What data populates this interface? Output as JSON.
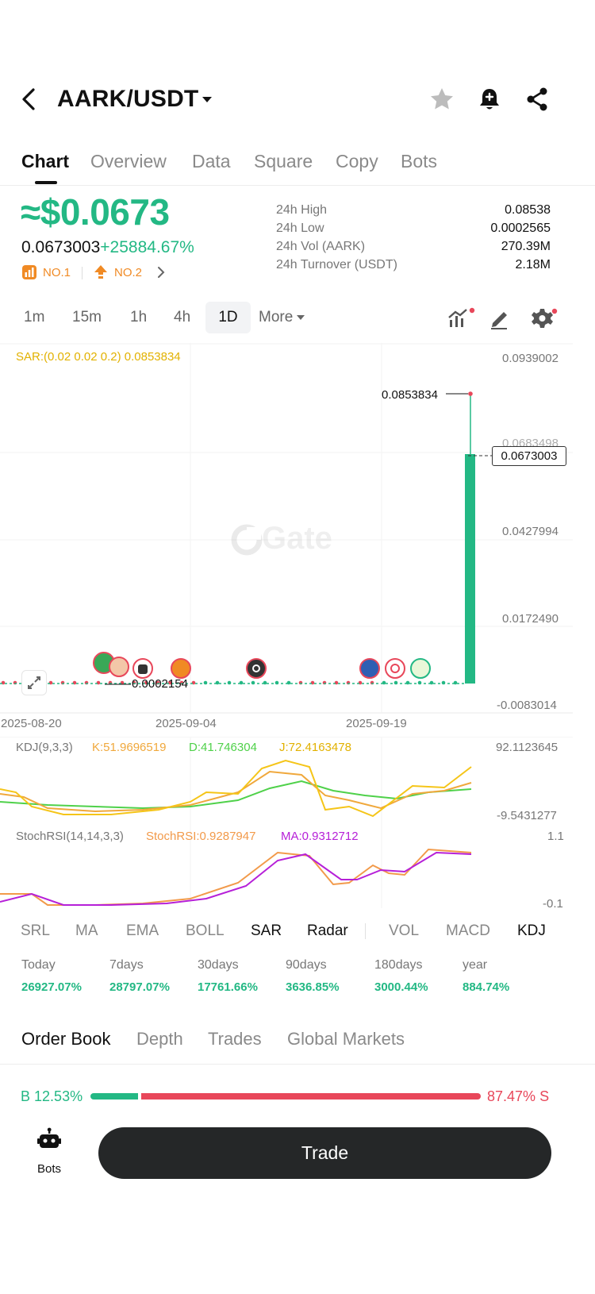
{
  "header": {
    "pair": "AARK/USDT"
  },
  "tabs": [
    {
      "label": "Chart",
      "active": true
    },
    {
      "label": "Overview"
    },
    {
      "label": "Data"
    },
    {
      "label": "Square"
    },
    {
      "label": "Copy"
    },
    {
      "label": "Bots"
    }
  ],
  "price": {
    "approx_usd": "≈$0.0673",
    "last": "0.0673003",
    "change": "+25884.67%",
    "rank1": "NO.1",
    "rank2": "NO.2"
  },
  "stats": [
    {
      "label": "24h High",
      "value": "0.08538"
    },
    {
      "label": "24h Low",
      "value": "0.0002565"
    },
    {
      "label": "24h Vol (AARK)",
      "value": "270.39M"
    },
    {
      "label": "24h Turnover (USDT)",
      "value": "2.18M"
    }
  ],
  "timeframes": [
    "1m",
    "15m",
    "1h",
    "4h",
    "1D"
  ],
  "timeframe_active": "1D",
  "more_label": "More",
  "chart": {
    "sar_label": "SAR:(0.02 0.02 0.2) 0.0853834",
    "high_marker": "0.0853834",
    "low_marker": "0.0002154",
    "current_price": "0.0673003",
    "hidden_tick": "0.0683498",
    "y_ticks": [
      "0.0939002",
      "0.0427994",
      "0.0172490",
      "-0.0083014"
    ],
    "x_ticks": [
      "2025-08-20",
      "2025-09-04",
      "2025-09-19"
    ],
    "watermark": "Gate"
  },
  "kdj": {
    "label": "KDJ(9,3,3)",
    "k": "K:51.9696519",
    "d": "D:41.746304",
    "j": "J:72.4163478",
    "max": "92.1123645",
    "min": "-9.5431277"
  },
  "stochrsi": {
    "label": "StochRSI(14,14,3,3)",
    "value": "StochRSI:0.9287947",
    "ma": "MA:0.9312712",
    "max": "1.1",
    "min": "-0.1"
  },
  "indicators": [
    {
      "label": "SRL"
    },
    {
      "label": "MA"
    },
    {
      "label": "EMA"
    },
    {
      "label": "BOLL"
    },
    {
      "label": "SAR",
      "on": true
    },
    {
      "label": "Radar",
      "on": true
    },
    {
      "label": "VOL"
    },
    {
      "label": "MACD"
    },
    {
      "label": "KDJ",
      "on": true
    }
  ],
  "performance": [
    {
      "label": "Today",
      "value": "26927.07%"
    },
    {
      "label": "7days",
      "value": "28797.07%"
    },
    {
      "label": "30days",
      "value": "17761.66%"
    },
    {
      "label": "90days",
      "value": "3636.85%"
    },
    {
      "label": "180days",
      "value": "3000.44%"
    },
    {
      "label": "year",
      "value": "884.74%"
    }
  ],
  "orderbook_tabs": [
    {
      "label": "Order Book",
      "active": true
    },
    {
      "label": "Depth"
    },
    {
      "label": "Trades"
    },
    {
      "label": "Global Markets"
    }
  ],
  "orderbook_ratio": {
    "buy_label": "B",
    "buy": "12.53%",
    "buy_fraction": 0.1253,
    "sell": "87.47%",
    "sell_label": "S"
  },
  "bottom": {
    "bots_label": "Bots",
    "trade_label": "Trade"
  },
  "colors": {
    "green": "#23b884",
    "red": "#e8475a",
    "orange": "#f08a24",
    "sar_yellow": "#e2b100",
    "kdj_k": "#f0a83c",
    "kdj_d": "#4fd14a",
    "kdj_j": "#f5c518",
    "stoch_rsi": "#f29a4a",
    "stoch_ma": "#b620d8"
  }
}
